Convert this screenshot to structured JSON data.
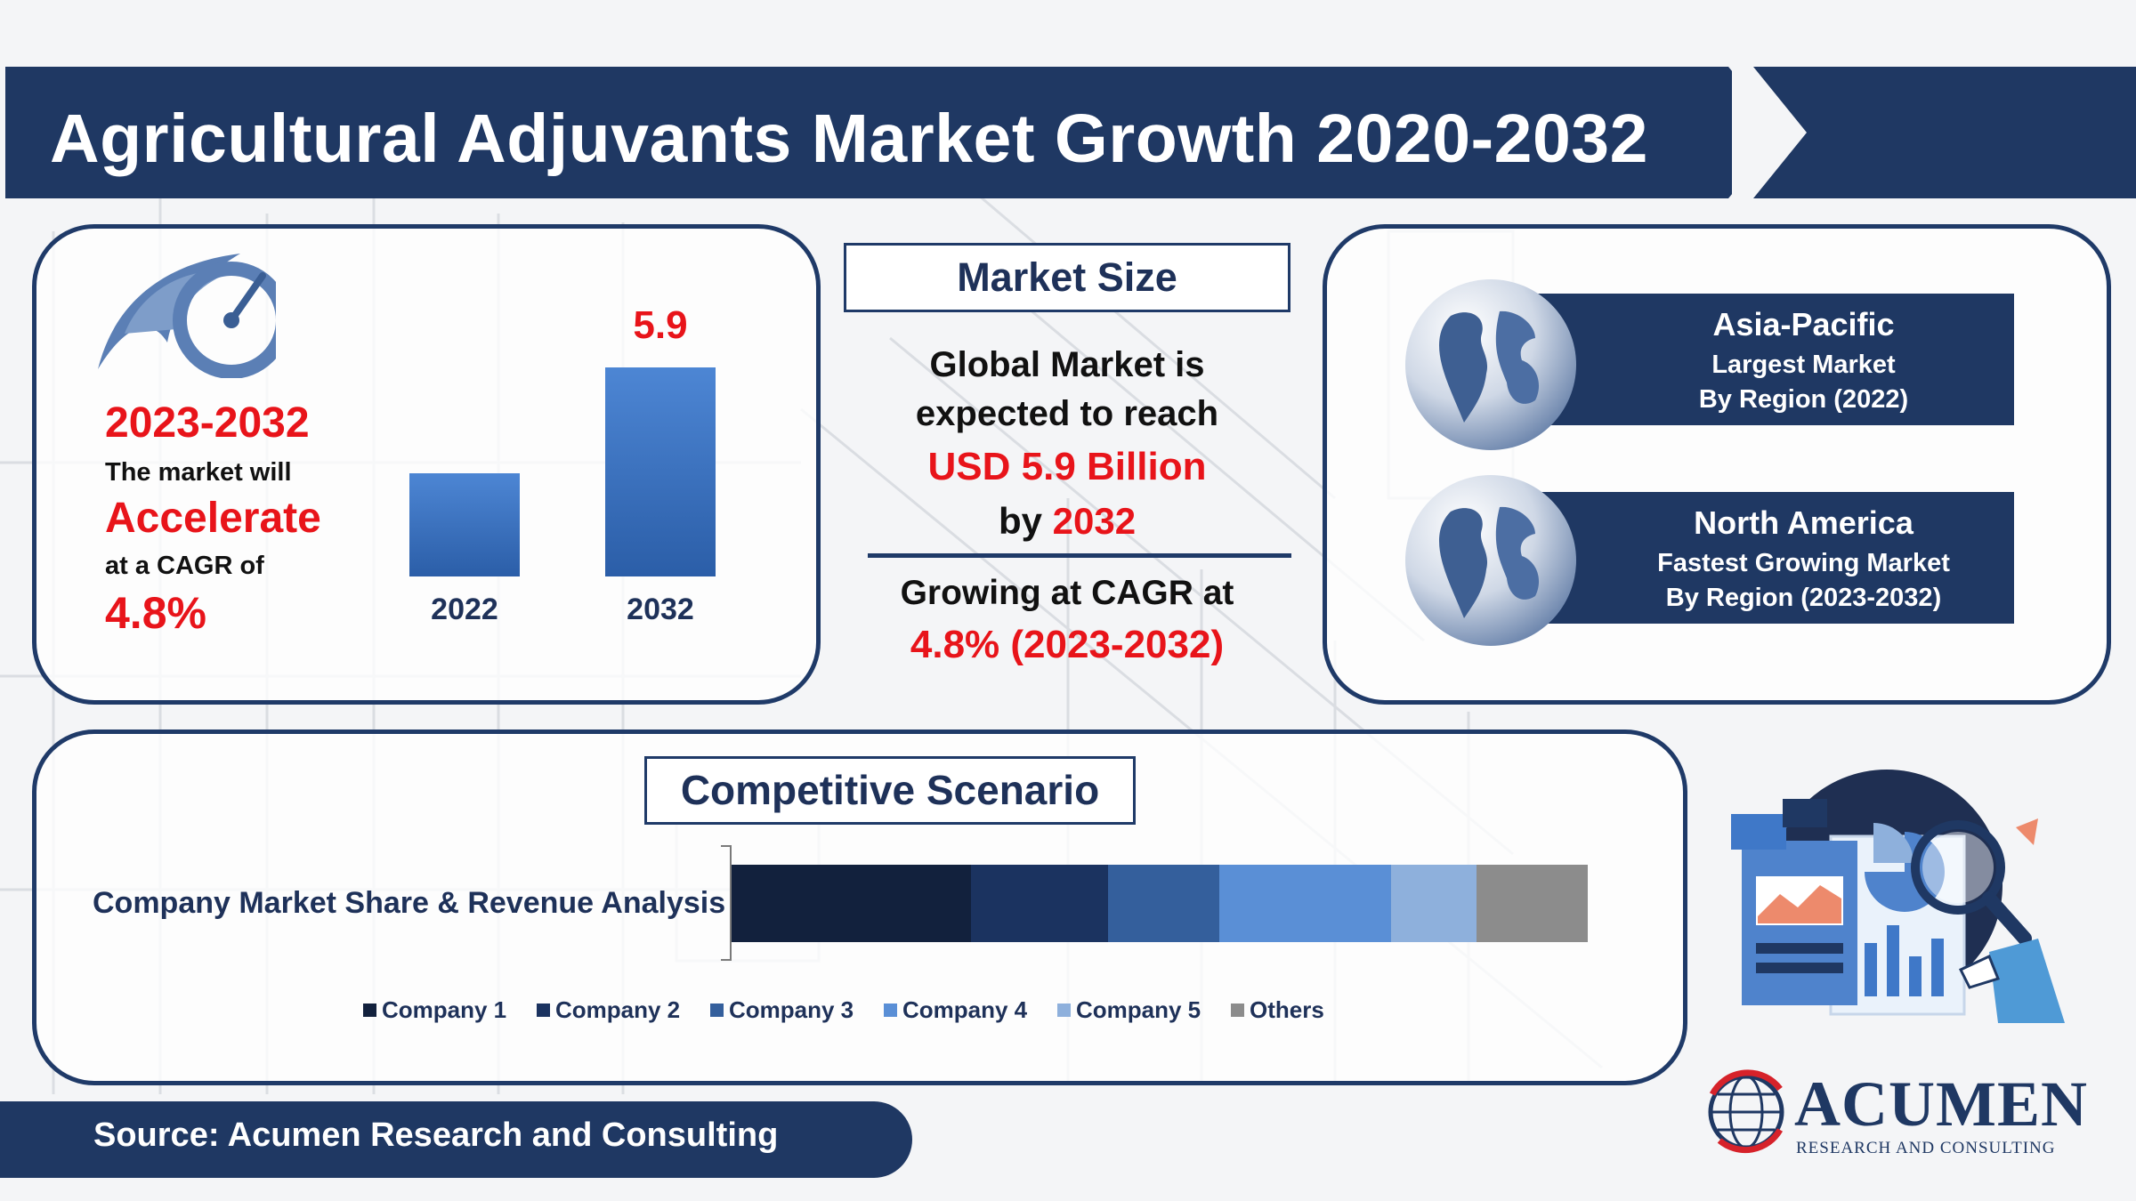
{
  "header": {
    "title": "Agricultural Adjuvants Market Growth 2020-2032"
  },
  "left_panel": {
    "period": "2023-2032",
    "line1": "The market will",
    "highlight": "Accelerate",
    "line2": "at a CAGR of",
    "cagr": "4.8%"
  },
  "market_size": {
    "title": "Market Size",
    "line1": "Global Market is",
    "line2": "expected to reach",
    "value": "USD 5.9 Billion",
    "by_prefix": "by",
    "by_year": "2032",
    "growing": "Growing at CAGR at",
    "growing_value": "4.8% (2023-2032)"
  },
  "regions": [
    {
      "name": "Asia-Pacific",
      "line1": "Largest Market",
      "line2": "By Region (2022)"
    },
    {
      "name": "North America",
      "line1": "Fastest Growing Market",
      "line2": "By Region (2023-2032)"
    }
  ],
  "competitive": {
    "title": "Competitive Scenario",
    "row_label": "Company Market Share & Revenue Analysis"
  },
  "source": {
    "text": "Source: Acumen Research and Consulting"
  },
  "brand": {
    "name": "ACUMEN",
    "tagline": "RESEARCH AND CONSULTING"
  },
  "colors": {
    "navy": "#1f3863",
    "accent_red": "#e8141a",
    "bar_blue": "#3f78c8"
  },
  "chart_data": [
    {
      "type": "bar",
      "categories": [
        "2022",
        "2032"
      ],
      "values": [
        null,
        5.9
      ],
      "data_labels": [
        "",
        "5.9"
      ],
      "value_scale_max": 5.9,
      "value_2022_estimate": 2.9,
      "unit": "USD Billion"
    },
    {
      "type": "bar",
      "orientation": "horizontal-stacked",
      "categories": [
        "Company Market Share & Revenue Analysis"
      ],
      "series": [
        {
          "name": "Company 1",
          "values": [
            28
          ],
          "color": "#12213d"
        },
        {
          "name": "Company 2",
          "values": [
            16
          ],
          "color": "#1b3360"
        },
        {
          "name": "Company 3",
          "values": [
            13
          ],
          "color": "#345f9c"
        },
        {
          "name": "Company 4",
          "values": [
            20
          ],
          "color": "#5a8fd6"
        },
        {
          "name": "Company 5",
          "values": [
            10
          ],
          "color": "#8eb0dc"
        },
        {
          "name": "Others",
          "values": [
            13
          ],
          "color": "#8c8c8c"
        }
      ],
      "legend_position": "bottom"
    }
  ]
}
